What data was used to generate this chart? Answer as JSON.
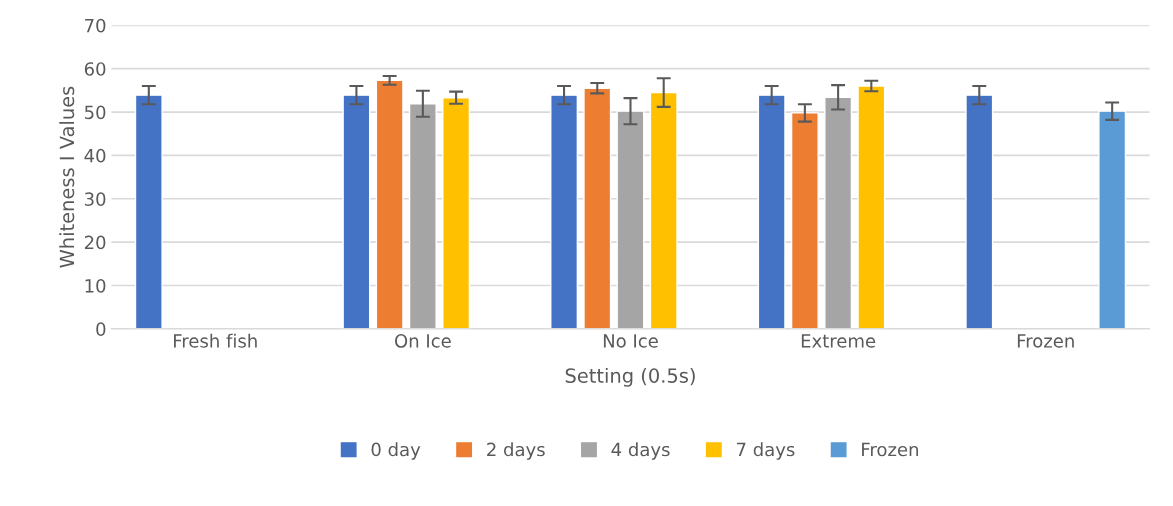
{
  "chart_data": {
    "type": "bar",
    "categories": [
      "Fresh fish",
      "On Ice",
      "No Ice",
      "Extreme",
      "Frozen"
    ],
    "xlabel": "Setting (0.5s)",
    "ylabel": "Whiteness I Values",
    "ylim": [
      0,
      70
    ],
    "yticks": [
      0,
      10,
      20,
      30,
      40,
      50,
      60,
      70
    ],
    "grid": "y",
    "legend": "bottom",
    "series": [
      {
        "name": "0 day",
        "color": "#4472c4",
        "values": [
          53.9,
          53.9,
          53.9,
          53.9,
          53.9
        ],
        "errors": [
          2.1,
          2.1,
          2.1,
          2.1,
          2.1
        ]
      },
      {
        "name": "2 days",
        "color": "#ed7d31",
        "values": [
          null,
          57.3,
          55.5,
          49.8,
          null
        ],
        "errors": [
          null,
          1.0,
          1.2,
          2.0,
          null
        ]
      },
      {
        "name": "4 days",
        "color": "#a5a5a5",
        "values": [
          null,
          51.9,
          50.2,
          53.4,
          null
        ],
        "errors": [
          null,
          3.0,
          3.0,
          2.8,
          null
        ]
      },
      {
        "name": "7 days",
        "color": "#ffc000",
        "values": [
          null,
          53.3,
          54.5,
          56.0,
          null
        ],
        "errors": [
          null,
          1.4,
          3.3,
          1.2,
          null
        ]
      },
      {
        "name": "Frozen",
        "color": "#5b9bd5",
        "values": [
          null,
          null,
          null,
          null,
          50.2
        ],
        "errors": [
          null,
          null,
          null,
          null,
          2.0
        ]
      }
    ]
  }
}
